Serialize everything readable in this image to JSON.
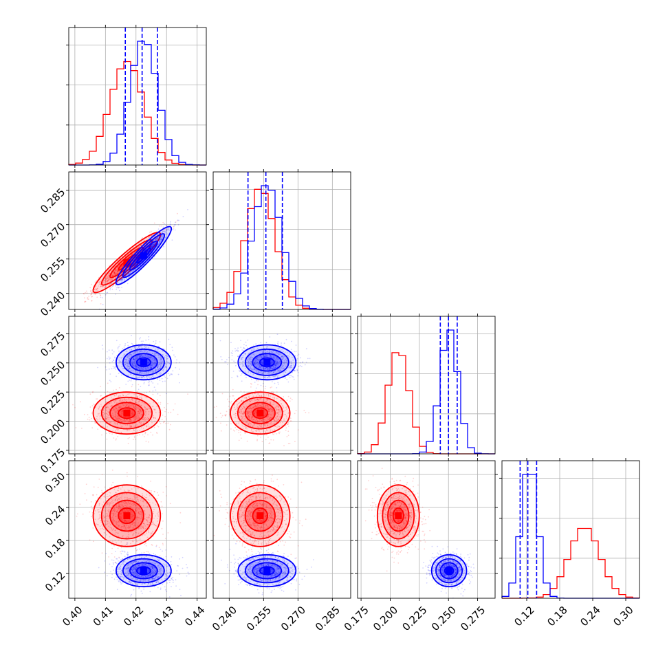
{
  "chart_data": {
    "type": "scatter",
    "variant": "corner-plot",
    "title": "",
    "grid": true,
    "legend": "none",
    "colors": {
      "red": "#ff0000",
      "blue": "#0000ff"
    },
    "parameters": [
      {
        "range": [
          0.398,
          0.443
        ],
        "ticks": [
          0.4,
          0.41,
          0.42,
          0.43,
          0.44
        ],
        "tick_labels": [
          "0.40",
          "0.41",
          "0.42",
          "0.43",
          "0.44"
        ]
      },
      {
        "range": [
          0.233,
          0.293
        ],
        "ticks": [
          0.24,
          0.255,
          0.27,
          0.285
        ],
        "tick_labels": [
          "0.240",
          "0.255",
          "0.270",
          "0.285"
        ]
      },
      {
        "range": [
          0.172,
          0.29
        ],
        "ticks": [
          0.175,
          0.2,
          0.225,
          0.25,
          0.275
        ],
        "tick_labels": [
          "0.175",
          "0.200",
          "0.225",
          "0.250",
          "0.275"
        ]
      },
      {
        "range": [
          0.075,
          0.325
        ],
        "ticks": [
          0.12,
          0.18,
          0.24,
          0.3
        ],
        "tick_labels": [
          "0.12",
          "0.18",
          "0.24",
          "0.30"
        ]
      }
    ],
    "series": [
      {
        "color": "#ff0000",
        "means": [
          0.417,
          0.2535,
          0.207,
          0.225
        ],
        "sigmas": [
          0.0055,
          0.0065,
          0.009,
          0.028
        ],
        "correlation_01": 0.95
      },
      {
        "color": "#0000ff",
        "means": [
          0.4225,
          0.2565,
          0.2505,
          0.125
        ],
        "sigmas": [
          0.0045,
          0.0063,
          0.0075,
          0.0145
        ],
        "correlation_01": 0.95,
        "quantiles": [
          [
            0.4165,
            0.422,
            0.427
          ],
          [
            0.2482,
            0.256,
            0.2632
          ],
          [
            0.243,
            0.25,
            0.2575
          ],
          [
            0.108,
            0.122,
            0.138
          ]
        ]
      }
    ]
  }
}
